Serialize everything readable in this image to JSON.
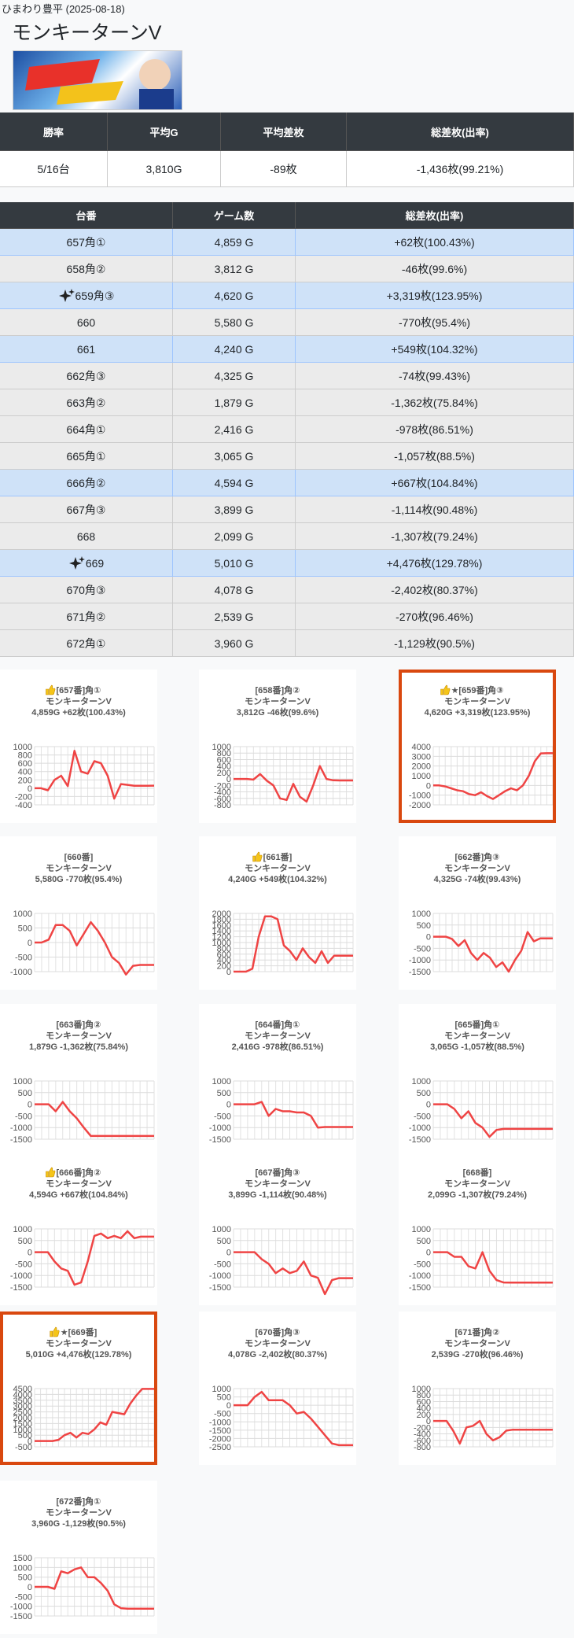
{
  "header": {
    "store": "ひまわり豊平 (2025-08-18)",
    "title": "モンキーターンV"
  },
  "summary": {
    "headers": [
      "勝率",
      "平均G",
      "平均差枚",
      "総差枚(出率)"
    ],
    "values": [
      "5/16台",
      "3,810G",
      "-89枚",
      "-1,436枚(99.21%)"
    ]
  },
  "machines": {
    "headers": [
      "台番",
      "ゲーム数",
      "総差枚(出率)"
    ],
    "rows": [
      {
        "id": "657角①",
        "games": "4,859 G",
        "total": "+62枚(100.43%)",
        "highlight": true
      },
      {
        "id": "658角②",
        "games": "3,812 G",
        "total": "-46枚(99.6%)"
      },
      {
        "id": "659角③",
        "games": "4,620 G",
        "total": "+3,319枚(123.95%)",
        "highlight": true,
        "sparkle": true
      },
      {
        "id": "660",
        "games": "5,580 G",
        "total": "-770枚(95.4%)"
      },
      {
        "id": "661",
        "games": "4,240 G",
        "total": "+549枚(104.32%)",
        "highlight": true
      },
      {
        "id": "662角③",
        "games": "4,325 G",
        "total": "-74枚(99.43%)"
      },
      {
        "id": "663角②",
        "games": "1,879 G",
        "total": "-1,362枚(75.84%)"
      },
      {
        "id": "664角①",
        "games": "2,416 G",
        "total": "-978枚(86.51%)"
      },
      {
        "id": "665角①",
        "games": "3,065 G",
        "total": "-1,057枚(88.5%)"
      },
      {
        "id": "666角②",
        "games": "4,594 G",
        "total": "+667枚(104.84%)",
        "highlight": true
      },
      {
        "id": "667角③",
        "games": "3,899 G",
        "total": "-1,114枚(90.48%)"
      },
      {
        "id": "668",
        "games": "2,099 G",
        "total": "-1,307枚(79.24%)"
      },
      {
        "id": "669",
        "games": "5,010 G",
        "total": "+4,476枚(129.78%)",
        "highlight": true,
        "sparkle": true
      },
      {
        "id": "670角③",
        "games": "4,078 G",
        "total": "-2,402枚(80.37%)"
      },
      {
        "id": "671角②",
        "games": "2,539 G",
        "total": "-270枚(96.46%)"
      },
      {
        "id": "672角①",
        "games": "3,960 G",
        "total": "-1,129枚(90.5%)"
      }
    ]
  },
  "chart_data": [
    {
      "type": "line",
      "title": [
        "[657番]角①",
        "モンキーターンV",
        "4,859G +62枚(100.43%)"
      ],
      "thumb": true,
      "color": "#ef4444",
      "grid": true,
      "ylim": [
        -400,
        1000
      ],
      "yticks": [
        1000,
        800,
        600,
        400,
        200,
        0,
        -200,
        -400
      ],
      "values": [
        0,
        0,
        -50,
        200,
        300,
        50,
        900,
        400,
        350,
        650,
        600,
        300,
        -250,
        100,
        80,
        60,
        60,
        60,
        62
      ]
    },
    {
      "type": "line",
      "title": [
        "[658番]角②",
        "モンキーターンV",
        "3,812G -46枚(99.6%)"
      ],
      "color": "#ef4444",
      "grid": true,
      "ylim": [
        -800,
        1000
      ],
      "yticks": [
        1000,
        800,
        600,
        400,
        200,
        0,
        -200,
        -400,
        -600,
        -800
      ],
      "values": [
        0,
        0,
        0,
        -20,
        150,
        -50,
        -200,
        -600,
        -650,
        -150,
        -550,
        -700,
        -200,
        400,
        0,
        -40,
        -46,
        -46,
        -46
      ]
    },
    {
      "type": "line",
      "title": [
        "★[659番]角③",
        "モンキーターンV",
        "4,620G +3,319枚(123.95%)"
      ],
      "thumb": true,
      "highlight": true,
      "color": "#ef4444",
      "grid": true,
      "ylim": [
        -2000,
        4000
      ],
      "yticks": [
        4000,
        3000,
        2000,
        1000,
        0,
        -1000,
        -2000
      ],
      "values": [
        0,
        0,
        -100,
        -300,
        -500,
        -600,
        -900,
        -1000,
        -700,
        -1100,
        -1400,
        -1000,
        -600,
        -300,
        -500,
        0,
        1000,
        2500,
        3300,
        3319,
        3319
      ]
    },
    {
      "type": "line",
      "title": [
        "[660番]",
        "モンキーターンV",
        "5,580G -770枚(95.4%)"
      ],
      "color": "#ef4444",
      "grid": true,
      "ylim": [
        -1000,
        1000
      ],
      "yticks": [
        1000,
        500,
        0,
        -500,
        -1000
      ],
      "values": [
        0,
        0,
        100,
        600,
        600,
        400,
        -100,
        300,
        700,
        400,
        0,
        -500,
        -700,
        -1100,
        -800,
        -770,
        -770,
        -770
      ]
    },
    {
      "type": "line",
      "title": [
        "[661番]",
        "モンキーターンV",
        "4,240G +549枚(104.32%)"
      ],
      "thumb": true,
      "color": "#ef4444",
      "grid": true,
      "ylim": [
        0,
        2000
      ],
      "yticks": [
        2000,
        1800,
        1600,
        1400,
        1200,
        1000,
        800,
        600,
        400,
        200,
        0
      ],
      "values": [
        0,
        0,
        0,
        100,
        1200,
        1900,
        1900,
        1800,
        900,
        700,
        400,
        800,
        500,
        300,
        700,
        300,
        549,
        549,
        549,
        549
      ]
    },
    {
      "type": "line",
      "title": [
        "[662番]角③",
        "モンキーターンV",
        "4,325G -74枚(99.43%)"
      ],
      "color": "#ef4444",
      "grid": true,
      "ylim": [
        -1500,
        1000
      ],
      "yticks": [
        1000,
        500,
        0,
        -500,
        -1000,
        -1500
      ],
      "values": [
        0,
        0,
        0,
        -100,
        -400,
        -150,
        -700,
        -1000,
        -700,
        -900,
        -1300,
        -1100,
        -1500,
        -1000,
        -600,
        200,
        -200,
        -74,
        -74,
        -74
      ]
    },
    {
      "type": "line",
      "title": [
        "[663番]角②",
        "モンキーターンV",
        "1,879G -1,362枚(75.84%)"
      ],
      "color": "#ef4444",
      "grid": true,
      "ylim": [
        -1500,
        1000
      ],
      "yticks": [
        1000,
        500,
        0,
        -500,
        -1000,
        -1500
      ],
      "values": [
        0,
        0,
        0,
        -300,
        100,
        -300,
        -600,
        -1000,
        -1362,
        -1362,
        -1362,
        -1362,
        -1362,
        -1362,
        -1362,
        -1362,
        -1362,
        -1362
      ]
    },
    {
      "type": "line",
      "title": [
        "[664番]角①",
        "モンキーターンV",
        "2,416G -978枚(86.51%)"
      ],
      "color": "#ef4444",
      "grid": true,
      "ylim": [
        -1500,
        1000
      ],
      "yticks": [
        1000,
        500,
        0,
        -500,
        -1000,
        -1500
      ],
      "values": [
        0,
        0,
        0,
        0,
        100,
        -500,
        -200,
        -300,
        -300,
        -350,
        -350,
        -500,
        -1000,
        -978,
        -978,
        -978,
        -978,
        -978
      ]
    },
    {
      "type": "line",
      "title": [
        "[665番]角①",
        "モンキーターンV",
        "3,065G -1,057枚(88.5%)"
      ],
      "color": "#ef4444",
      "grid": true,
      "ylim": [
        -1500,
        1000
      ],
      "yticks": [
        1000,
        500,
        0,
        -500,
        -1000,
        -1500
      ],
      "values": [
        0,
        0,
        0,
        -200,
        -600,
        -300,
        -800,
        -1000,
        -1400,
        -1100,
        -1057,
        -1057,
        -1057,
        -1057,
        -1057,
        -1057,
        -1057,
        -1057
      ]
    },
    {
      "type": "line",
      "title": [
        "[666番]角②",
        "モンキーターンV",
        "4,594G +667枚(104.84%)"
      ],
      "thumb": true,
      "color": "#ef4444",
      "grid": true,
      "ylim": [
        -1500,
        1000
      ],
      "yticks": [
        1000,
        500,
        0,
        -500,
        -1000,
        -1500
      ],
      "values": [
        0,
        0,
        0,
        -400,
        -700,
        -800,
        -1400,
        -1300,
        -400,
        700,
        800,
        600,
        700,
        600,
        900,
        600,
        667,
        667,
        667
      ]
    },
    {
      "type": "line",
      "title": [
        "[667番]角③",
        "モンキーターンV",
        "3,899G -1,114枚(90.48%)"
      ],
      "color": "#ef4444",
      "grid": true,
      "ylim": [
        -1500,
        1000
      ],
      "yticks": [
        1000,
        500,
        0,
        -500,
        -1000,
        -1500
      ],
      "values": [
        0,
        0,
        0,
        0,
        -300,
        -500,
        -900,
        -700,
        -900,
        -800,
        -400,
        -1000,
        -1100,
        -1800,
        -1200,
        -1114,
        -1114,
        -1114
      ]
    },
    {
      "type": "line",
      "title": [
        "[668番]",
        "モンキーターンV",
        "2,099G -1,307枚(79.24%)"
      ],
      "color": "#ef4444",
      "grid": true,
      "ylim": [
        -1500,
        1000
      ],
      "yticks": [
        1000,
        500,
        0,
        -500,
        -1000,
        -1500
      ],
      "values": [
        0,
        0,
        0,
        -200,
        -200,
        -600,
        -700,
        0,
        -800,
        -1200,
        -1300,
        -1307,
        -1307,
        -1307,
        -1307,
        -1307,
        -1307,
        -1307
      ]
    },
    {
      "type": "line",
      "title": [
        "★[669番]",
        "モンキーターンV",
        "5,010G +4,476枚(129.78%)"
      ],
      "thumb": true,
      "highlight": true,
      "color": "#ef4444",
      "grid": true,
      "ylim": [
        -500,
        4500
      ],
      "yticks": [
        4500,
        4000,
        3500,
        3000,
        2500,
        2000,
        1500,
        1000,
        500,
        0,
        -500
      ],
      "values": [
        0,
        0,
        0,
        0,
        100,
        500,
        700,
        300,
        700,
        600,
        1000,
        1600,
        1400,
        2500,
        2400,
        2300,
        3200,
        3900,
        4476,
        4476,
        4476
      ]
    },
    {
      "type": "line",
      "title": [
        "[670番]角③",
        "モンキーターンV",
        "4,078G -2,402枚(80.37%)"
      ],
      "color": "#ef4444",
      "grid": true,
      "ylim": [
        -2500,
        1000
      ],
      "yticks": [
        1000,
        500,
        0,
        -500,
        -1000,
        -1500,
        -2000,
        -2500
      ],
      "values": [
        0,
        0,
        0,
        500,
        800,
        300,
        300,
        300,
        0,
        -500,
        -400,
        -800,
        -1300,
        -1800,
        -2300,
        -2402,
        -2402,
        -2402
      ]
    },
    {
      "type": "line",
      "title": [
        "[671番]角②",
        "モンキーターンV",
        "2,539G -270枚(96.46%)"
      ],
      "color": "#ef4444",
      "grid": true,
      "ylim": [
        -800,
        1000
      ],
      "yticks": [
        1000,
        800,
        600,
        400,
        200,
        0,
        -200,
        -400,
        -600,
        -800
      ],
      "values": [
        0,
        0,
        0,
        -300,
        -700,
        -200,
        -150,
        0,
        -400,
        -600,
        -500,
        -300,
        -270,
        -270,
        -270,
        -270,
        -270,
        -270,
        -270
      ]
    },
    {
      "type": "line",
      "title": [
        "[672番]角①",
        "モンキーターンV",
        "3,960G -1,129枚(90.5%)"
      ],
      "color": "#ef4444",
      "grid": true,
      "ylim": [
        -1500,
        1500
      ],
      "yticks": [
        1500,
        1000,
        500,
        0,
        -500,
        -1000,
        -1500
      ],
      "values": [
        0,
        0,
        0,
        -100,
        800,
        700,
        900,
        1000,
        500,
        500,
        200,
        -200,
        -900,
        -1100,
        -1129,
        -1129,
        -1129,
        -1129,
        -1129
      ]
    }
  ]
}
